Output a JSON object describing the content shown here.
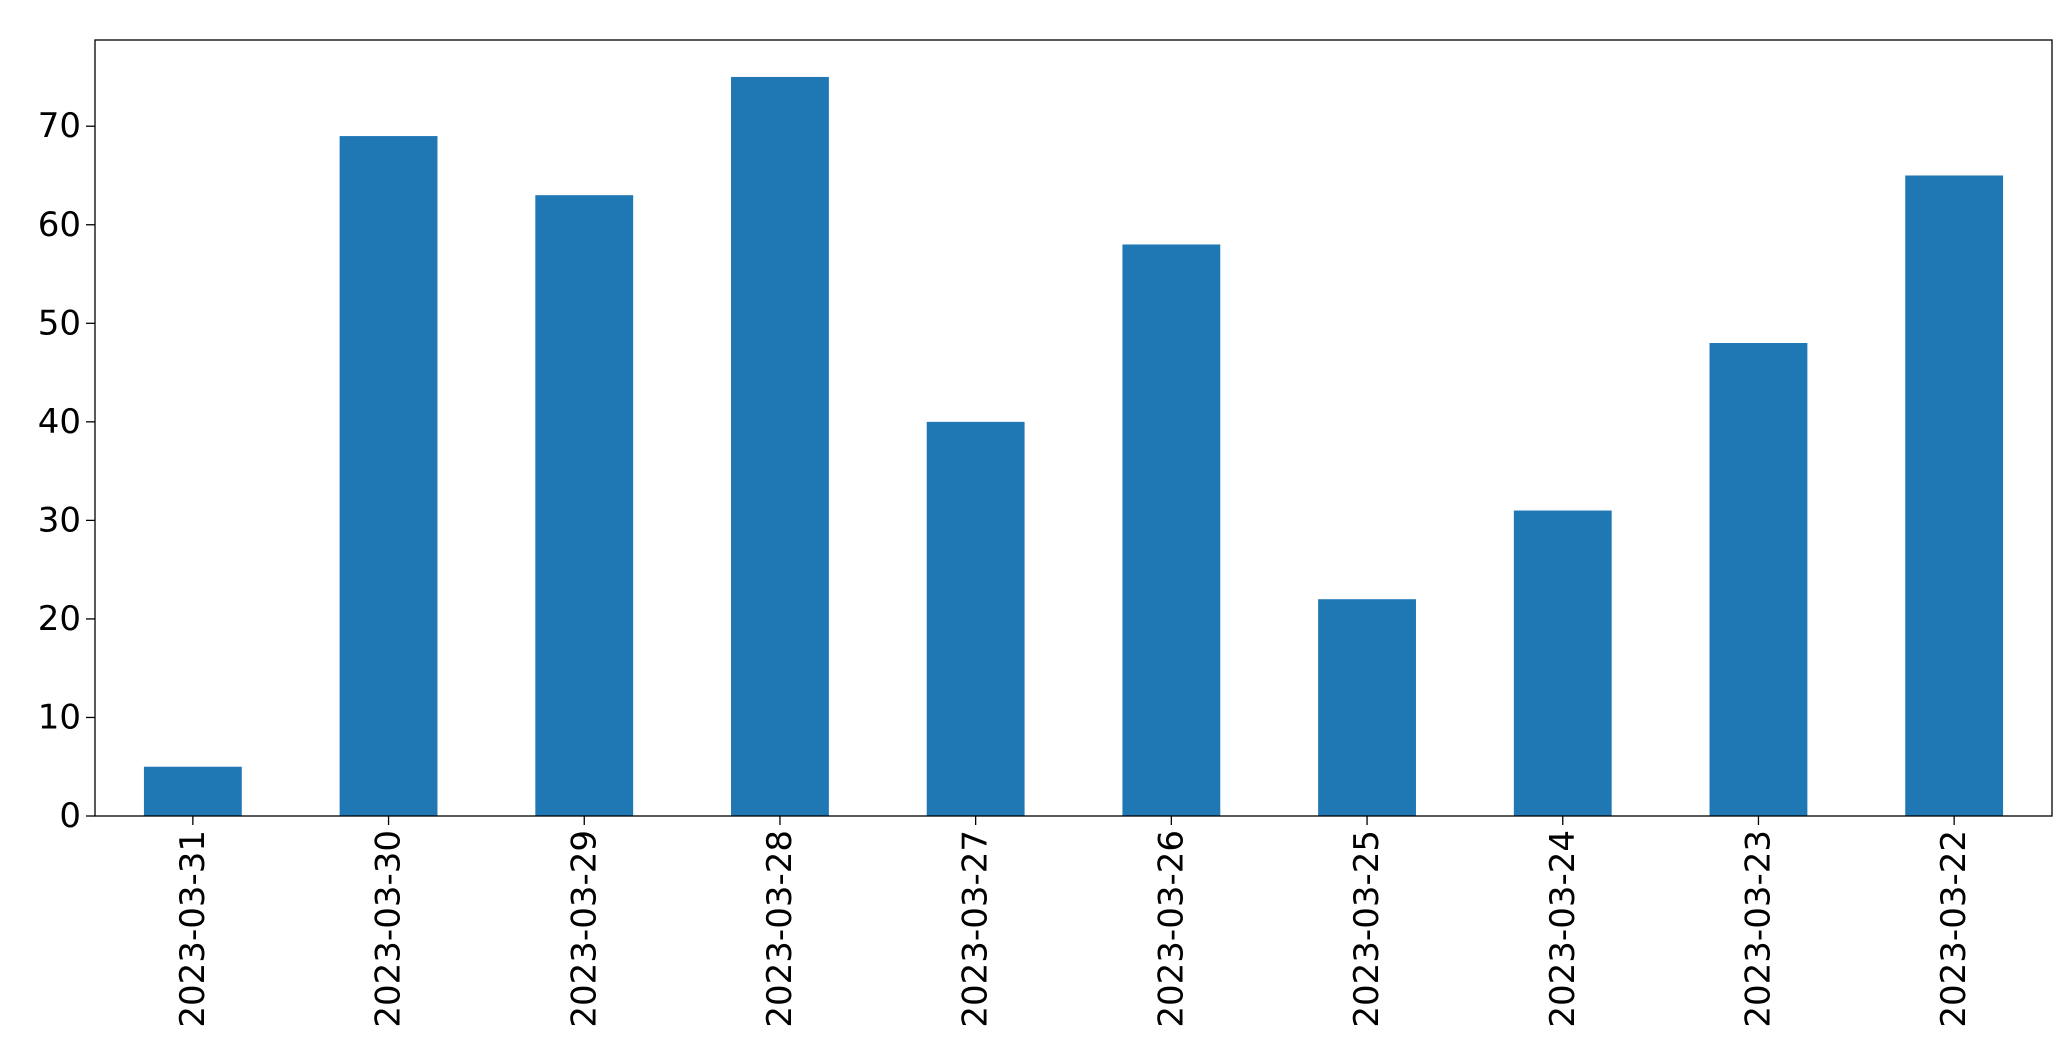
{
  "chart_data": {
    "type": "bar",
    "categories": [
      "2023-03-31",
      "2023-03-30",
      "2023-03-29",
      "2023-03-28",
      "2023-03-27",
      "2023-03-26",
      "2023-03-25",
      "2023-03-24",
      "2023-03-23",
      "2023-03-22"
    ],
    "values": [
      5,
      69,
      63,
      75,
      40,
      58,
      22,
      31,
      48,
      65
    ],
    "color": "#1f77b4",
    "ylim": [
      0,
      78.75
    ],
    "yticks": [
      0,
      10,
      20,
      30,
      40,
      50,
      60,
      70
    ],
    "grid": false
  }
}
